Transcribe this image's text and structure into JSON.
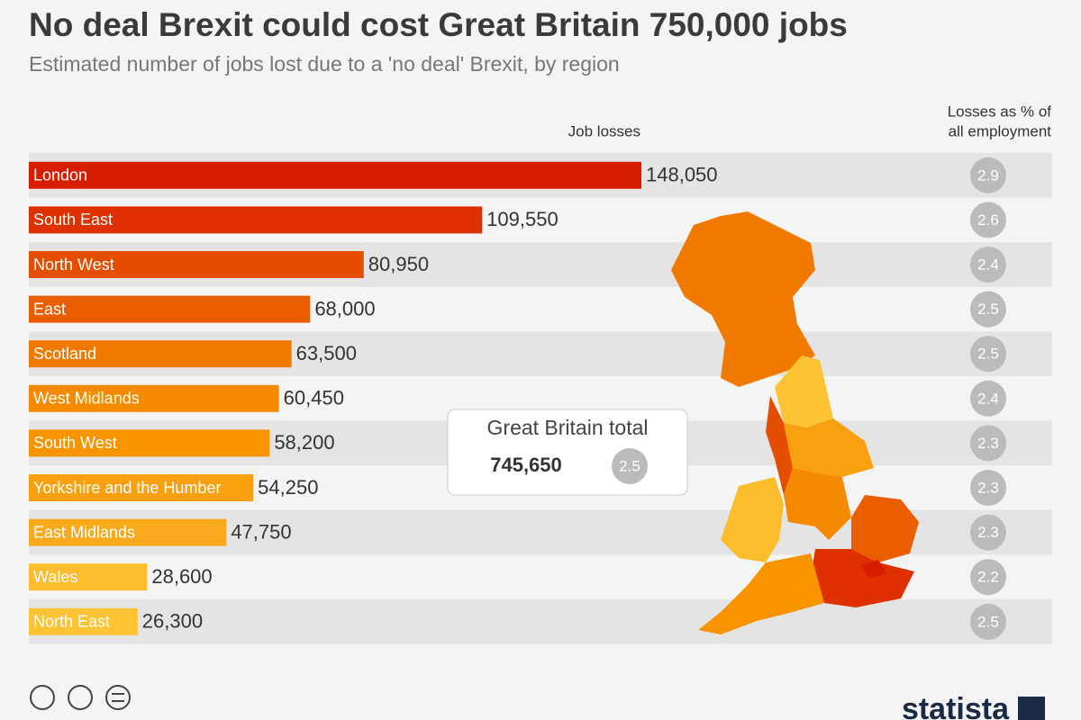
{
  "chart_data": {
    "type": "bar",
    "orientation": "horizontal",
    "title": "No deal Brexit could cost Great Britain 750,000 jobs",
    "subtitle": "Estimated number of jobs lost due to a 'no deal' Brexit, by region",
    "value_header": "Job losses",
    "share_header": [
      "Losses as % of",
      "all employment"
    ],
    "categories": [
      "London",
      "South East",
      "North West",
      "East",
      "Scotland",
      "West Midlands",
      "South West",
      "Yorkshire and the Humber",
      "East Midlands",
      "Wales",
      "North East"
    ],
    "values": [
      148050,
      109550,
      80950,
      68000,
      63500,
      60450,
      58200,
      54250,
      47750,
      28600,
      26300
    ],
    "value_labels": [
      "148,050",
      "109,550",
      "80,950",
      "68,000",
      "63,500",
      "60,450",
      "58,200",
      "54,250",
      "47,750",
      "28,600",
      "26,300"
    ],
    "colors": [
      "#d81e00",
      "#df3000",
      "#e54d00",
      "#ea5e00",
      "#f07a00",
      "#f58a00",
      "#f79400",
      "#f8a010",
      "#f9aa1c",
      "#fbbd2c",
      "#fcc434"
    ],
    "shares": [
      2.9,
      2.6,
      2.4,
      2.5,
      2.5,
      2.4,
      2.3,
      2.3,
      2.3,
      2.2,
      2.5
    ],
    "total": {
      "label": "Great Britain total",
      "value_label": "745,650",
      "share": 2.5
    },
    "brand": "statista"
  }
}
